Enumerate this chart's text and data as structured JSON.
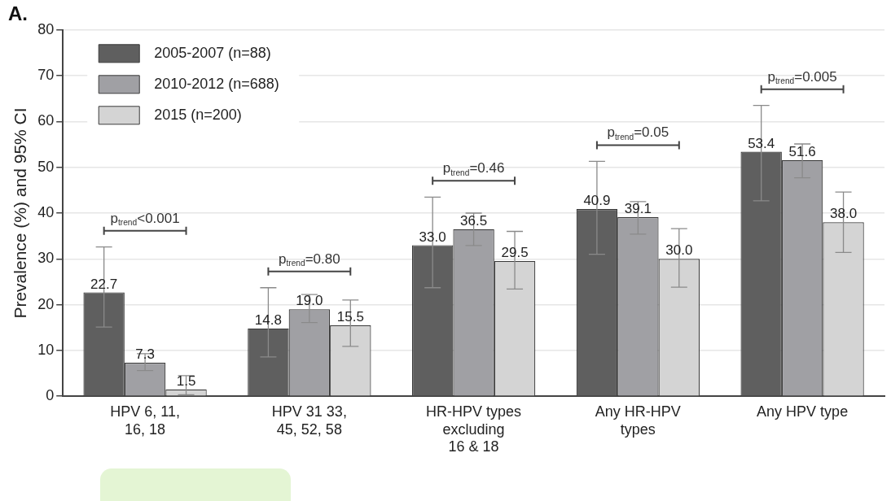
{
  "chart_data": {
    "type": "bar",
    "title": "A.",
    "ylabel": "Prevalence (%) and 95% CI",
    "categories": [
      "HPV 6, 11,\n16, 18",
      "HPV 31 33,\n45, 52, 58",
      "HR-HPV types\nexcluding\n16 & 18",
      "Any HR-HPV\ntypes",
      "Any HPV type"
    ],
    "series": [
      {
        "name": "2005-2007 (n=88)",
        "color": "#5f5f5f",
        "values": [
          22.7,
          14.8,
          33.0,
          40.9,
          53.4
        ],
        "errors": [
          [
            15.1,
            32.6
          ],
          [
            8.6,
            23.7
          ],
          [
            23.7,
            43.5
          ],
          [
            31.0,
            51.3
          ],
          [
            42.7,
            63.5
          ]
        ],
        "value_labels": [
          "22.7",
          "14.8",
          "33.0",
          "40.9",
          "53.4"
        ]
      },
      {
        "name": "2010-2012 (n=688)",
        "color": "#a0a0a4",
        "values": [
          7.3,
          19.0,
          36.5,
          39.1,
          51.6
        ],
        "errors": [
          [
            5.6,
            9.3
          ],
          [
            16.1,
            22.2
          ],
          [
            32.9,
            40.0
          ],
          [
            35.4,
            42.5
          ],
          [
            47.7,
            55.1
          ]
        ],
        "value_labels": [
          "7.3",
          "19.0",
          "36.5",
          "39.1",
          "51.6"
        ]
      },
      {
        "name": "2015 (n=200)",
        "color": "#d4d4d4",
        "values": [
          1.5,
          15.5,
          29.5,
          30.0,
          38.0
        ],
        "errors": [
          [
            0.3,
            4.5
          ],
          [
            10.9,
            21.0
          ],
          [
            23.4,
            36.0
          ],
          [
            23.8,
            36.6
          ],
          [
            31.4,
            44.6
          ]
        ],
        "value_labels": [
          "1.5",
          "15.5",
          "29.5",
          "30.0",
          "38.0"
        ]
      }
    ],
    "ylim": [
      0,
      80
    ],
    "yticks": [
      0,
      10,
      20,
      30,
      40,
      50,
      60,
      70,
      80
    ],
    "grid": "y",
    "legend": "top left",
    "annotations": [
      "p$_{trend}$<0.001",
      "p$_{trend}$=0.80",
      "p$_{trend}$=0.46",
      "p$_{trend}$=0.05",
      "p$_{trend}$=0.005"
    ]
  }
}
